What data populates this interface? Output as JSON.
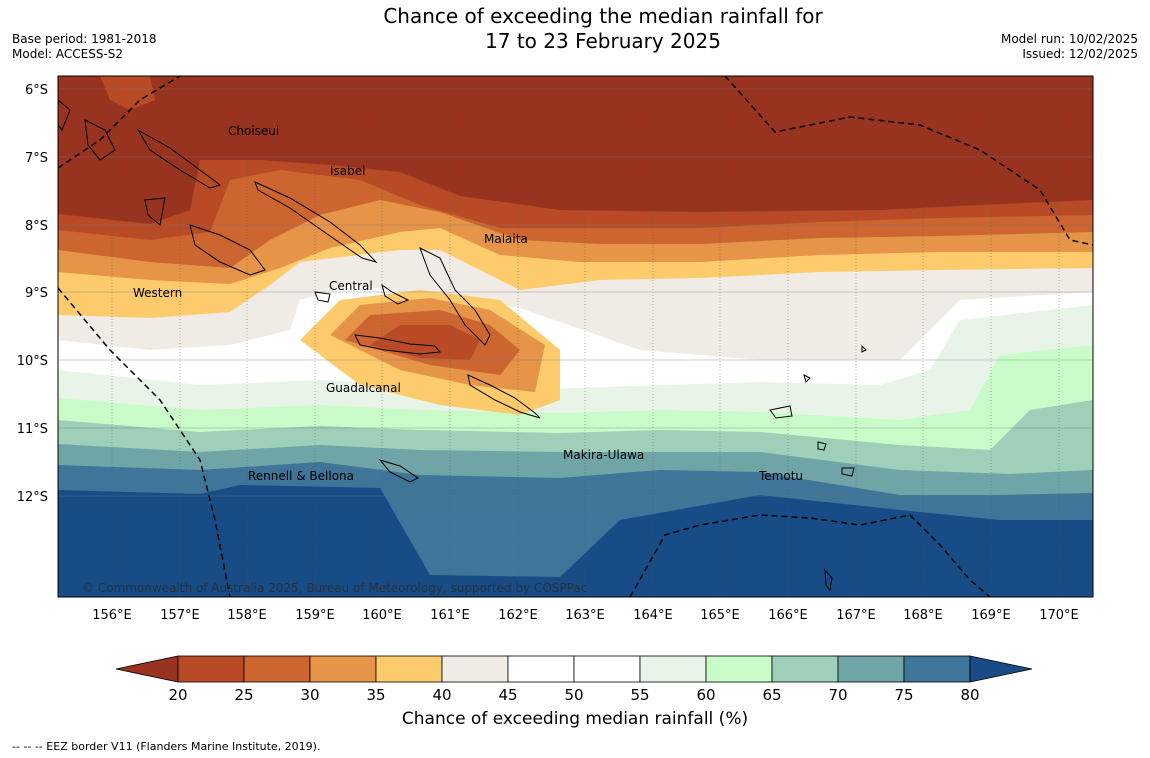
{
  "title": {
    "line1": "Chance of exceeding the median rainfall for",
    "line2": "17 to 23 February 2025"
  },
  "meta": {
    "base_period": "Base period: 1981-2018",
    "model": "Model: ACCESS-S2",
    "model_run": "Model run: 10/02/2025",
    "issued": "Issued: 12/02/2025"
  },
  "map": {
    "lat_labels": [
      "6°S",
      "7°S",
      "8°S",
      "9°S",
      "10°S",
      "11°S",
      "12°S"
    ],
    "lon_labels": [
      "156°E",
      "157°E",
      "158°E",
      "159°E",
      "160°E",
      "161°E",
      "162°E",
      "163°E",
      "164°E",
      "165°E",
      "166°E",
      "167°E",
      "168°E",
      "169°E",
      "170°E"
    ],
    "place_labels": [
      "Choiseul",
      "Isabel",
      "Malaita",
      "Central",
      "Western",
      "Guadalcanal",
      "Makira-Ulawa",
      "Rennell & Bellona",
      "Temotu"
    ],
    "copyright": "© Commonwealth of Australia 2025, Bureau of Meteorology, supported by COSPPac"
  },
  "colorbar": {
    "ticks": [
      "20",
      "25",
      "30",
      "35",
      "40",
      "45",
      "50",
      "55",
      "60",
      "65",
      "70",
      "75",
      "80"
    ],
    "colors": [
      "#98331f",
      "#b84b26",
      "#cc6530",
      "#e59448",
      "#fdcb6c",
      "#f1ebe6",
      "#ffffff",
      "#ffffff",
      "#e9f4e9",
      "#c9fbc8",
      "#9dcfb9",
      "#6fa5a6",
      "#3e7598",
      "#174c86"
    ],
    "label": "Chance of exceeding median rainfall (%)"
  },
  "footnote": "--  --  -- EEZ border V11 (Flanders Marine Institute, 2019)."
}
